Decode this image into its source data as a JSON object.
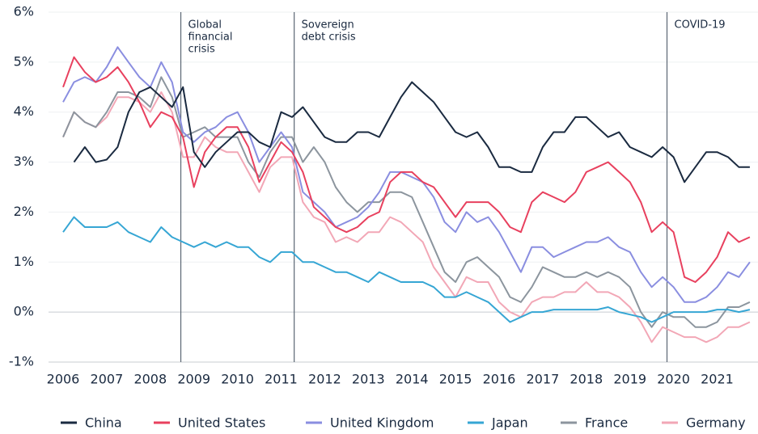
{
  "chart_data": {
    "type": "line",
    "x": [
      2006,
      2006.25,
      2006.5,
      2006.75,
      2007,
      2007.25,
      2007.5,
      2007.75,
      2008,
      2008.25,
      2008.5,
      2008.75,
      2009,
      2009.25,
      2009.5,
      2009.75,
      2010,
      2010.25,
      2010.5,
      2010.75,
      2011,
      2011.25,
      2011.5,
      2011.75,
      2012,
      2012.25,
      2012.5,
      2012.75,
      2013,
      2013.25,
      2013.5,
      2013.75,
      2014,
      2014.25,
      2014.5,
      2014.75,
      2015,
      2015.25,
      2015.5,
      2015.75,
      2016,
      2016.25,
      2016.5,
      2016.75,
      2017,
      2017.25,
      2017.5,
      2017.75,
      2018,
      2018.25,
      2018.5,
      2018.75,
      2019,
      2019.25,
      2019.5,
      2019.75,
      2020,
      2020.25,
      2020.5,
      2020.75,
      2021,
      2021.25,
      2021.5,
      2021.75
    ],
    "series": [
      {
        "name": "China",
        "color": "#1a2a40",
        "values": [
          null,
          3.0,
          3.3,
          3.0,
          3.05,
          3.3,
          4.0,
          4.4,
          4.5,
          4.3,
          4.1,
          4.5,
          3.2,
          2.9,
          3.2,
          3.4,
          3.6,
          3.6,
          3.4,
          3.3,
          4.0,
          3.9,
          4.1,
          3.8,
          3.5,
          3.4,
          3.4,
          3.6,
          3.6,
          3.5,
          3.9,
          4.3,
          4.6,
          4.4,
          4.2,
          3.9,
          3.6,
          3.5,
          3.6,
          3.3,
          2.9,
          2.9,
          2.8,
          2.8,
          3.3,
          3.6,
          3.6,
          3.9,
          3.9,
          3.7,
          3.5,
          3.6,
          3.3,
          3.2,
          3.1,
          3.3,
          3.1,
          2.6,
          2.9,
          3.2,
          3.2,
          3.1,
          2.9,
          2.9
        ]
      },
      {
        "name": "United States",
        "color": "#e8405e",
        "values": [
          4.5,
          5.1,
          4.8,
          4.6,
          4.7,
          4.9,
          4.6,
          4.2,
          3.7,
          4.0,
          3.9,
          3.5,
          2.5,
          3.2,
          3.5,
          3.7,
          3.7,
          3.3,
          2.6,
          3.0,
          3.4,
          3.2,
          2.8,
          2.1,
          1.9,
          1.7,
          1.6,
          1.7,
          1.9,
          2.0,
          2.6,
          2.8,
          2.8,
          2.6,
          2.5,
          2.2,
          1.9,
          2.2,
          2.2,
          2.2,
          2.0,
          1.7,
          1.6,
          2.2,
          2.4,
          2.3,
          2.2,
          2.4,
          2.8,
          2.9,
          3.0,
          2.8,
          2.6,
          2.2,
          1.6,
          1.8,
          1.6,
          0.7,
          0.6,
          0.8,
          1.1,
          1.6,
          1.4,
          1.5
        ]
      },
      {
        "name": "United Kingdom",
        "color": "#8a8ee0",
        "values": [
          4.2,
          4.6,
          4.7,
          4.6,
          4.9,
          5.3,
          5.0,
          4.7,
          4.5,
          5.0,
          4.6,
          3.6,
          3.4,
          3.6,
          3.7,
          3.9,
          4.0,
          3.6,
          3.0,
          3.3,
          3.6,
          3.3,
          2.4,
          2.2,
          2.0,
          1.7,
          1.8,
          1.9,
          2.1,
          2.4,
          2.8,
          2.8,
          2.7,
          2.6,
          2.3,
          1.8,
          1.6,
          2.0,
          1.8,
          1.9,
          1.6,
          1.2,
          0.8,
          1.3,
          1.3,
          1.1,
          1.2,
          1.3,
          1.4,
          1.4,
          1.5,
          1.3,
          1.2,
          0.8,
          0.5,
          0.7,
          0.5,
          0.2,
          0.2,
          0.3,
          0.5,
          0.8,
          0.7,
          1.0
        ]
      },
      {
        "name": "Japan",
        "color": "#36a6d4",
        "values": [
          1.6,
          1.9,
          1.7,
          1.7,
          1.7,
          1.8,
          1.6,
          1.5,
          1.4,
          1.7,
          1.5,
          1.4,
          1.3,
          1.4,
          1.3,
          1.4,
          1.3,
          1.3,
          1.1,
          1.0,
          1.2,
          1.2,
          1.0,
          1.0,
          0.9,
          0.8,
          0.8,
          0.7,
          0.6,
          0.8,
          0.7,
          0.6,
          0.6,
          0.6,
          0.5,
          0.3,
          0.3,
          0.4,
          0.3,
          0.2,
          0.0,
          -0.2,
          -0.1,
          0.0,
          0.0,
          0.05,
          0.05,
          0.05,
          0.05,
          0.05,
          0.1,
          0.0,
          -0.05,
          -0.1,
          -0.2,
          -0.1,
          0.0,
          0.0,
          0.0,
          0.0,
          0.05,
          0.05,
          0.0,
          0.05
        ]
      },
      {
        "name": "France",
        "color": "#8c959e",
        "values": [
          3.5,
          4.0,
          3.8,
          3.7,
          4.0,
          4.4,
          4.4,
          4.3,
          4.1,
          4.7,
          4.3,
          3.5,
          3.6,
          3.7,
          3.5,
          3.5,
          3.5,
          3.0,
          2.7,
          3.2,
          3.5,
          3.5,
          3.0,
          3.3,
          3.0,
          2.5,
          2.2,
          2.0,
          2.2,
          2.2,
          2.4,
          2.4,
          2.3,
          1.8,
          1.3,
          0.8,
          0.6,
          1.0,
          1.1,
          0.9,
          0.7,
          0.3,
          0.2,
          0.5,
          0.9,
          0.8,
          0.7,
          0.7,
          0.8,
          0.7,
          0.8,
          0.7,
          0.5,
          0.0,
          -0.3,
          0.0,
          -0.1,
          -0.1,
          -0.3,
          -0.3,
          -0.2,
          0.1,
          0.1,
          0.2
        ]
      },
      {
        "name": "Germany",
        "color": "#f2a7b6",
        "values": [
          3.5,
          4.0,
          3.8,
          3.7,
          3.9,
          4.3,
          4.3,
          4.2,
          4.0,
          4.4,
          4.0,
          3.1,
          3.1,
          3.5,
          3.3,
          3.2,
          3.2,
          2.8,
          2.4,
          2.9,
          3.1,
          3.1,
          2.2,
          1.9,
          1.8,
          1.4,
          1.5,
          1.4,
          1.6,
          1.6,
          1.9,
          1.8,
          1.6,
          1.4,
          0.9,
          0.6,
          0.3,
          0.7,
          0.6,
          0.6,
          0.2,
          0.0,
          -0.1,
          0.2,
          0.3,
          0.3,
          0.4,
          0.4,
          0.6,
          0.4,
          0.4,
          0.3,
          0.1,
          -0.2,
          -0.6,
          -0.3,
          -0.4,
          -0.5,
          -0.5,
          -0.6,
          -0.5,
          -0.3,
          -0.3,
          -0.2
        ]
      }
    ],
    "annotations": [
      {
        "lines": [
          "Global",
          "financial",
          "crisis"
        ],
        "x": 2008.7
      },
      {
        "lines": [
          "Sovereign",
          "debt crisis"
        ],
        "x": 2011.3
      },
      {
        "lines": [
          "COVID-19"
        ],
        "x": 2019.85
      }
    ],
    "xlim": [
      2006,
      2021.9
    ],
    "xticks": [
      2006,
      2007,
      2008,
      2009,
      2010,
      2011,
      2012,
      2013,
      2014,
      2015,
      2016,
      2017,
      2018,
      2019,
      2020,
      2021
    ],
    "ylim": [
      -1,
      6
    ],
    "yticks": [
      {
        "value": -1,
        "label": "-1%"
      },
      {
        "value": 0,
        "label": "0%"
      },
      {
        "value": 1,
        "label": "1%"
      },
      {
        "value": 2,
        "label": "2%"
      },
      {
        "value": 3,
        "label": "3%"
      },
      {
        "value": 4,
        "label": "4%"
      },
      {
        "value": 5,
        "label": "5%"
      },
      {
        "value": 6,
        "label": "6%"
      }
    ],
    "grid": true,
    "legend": "bottom"
  }
}
